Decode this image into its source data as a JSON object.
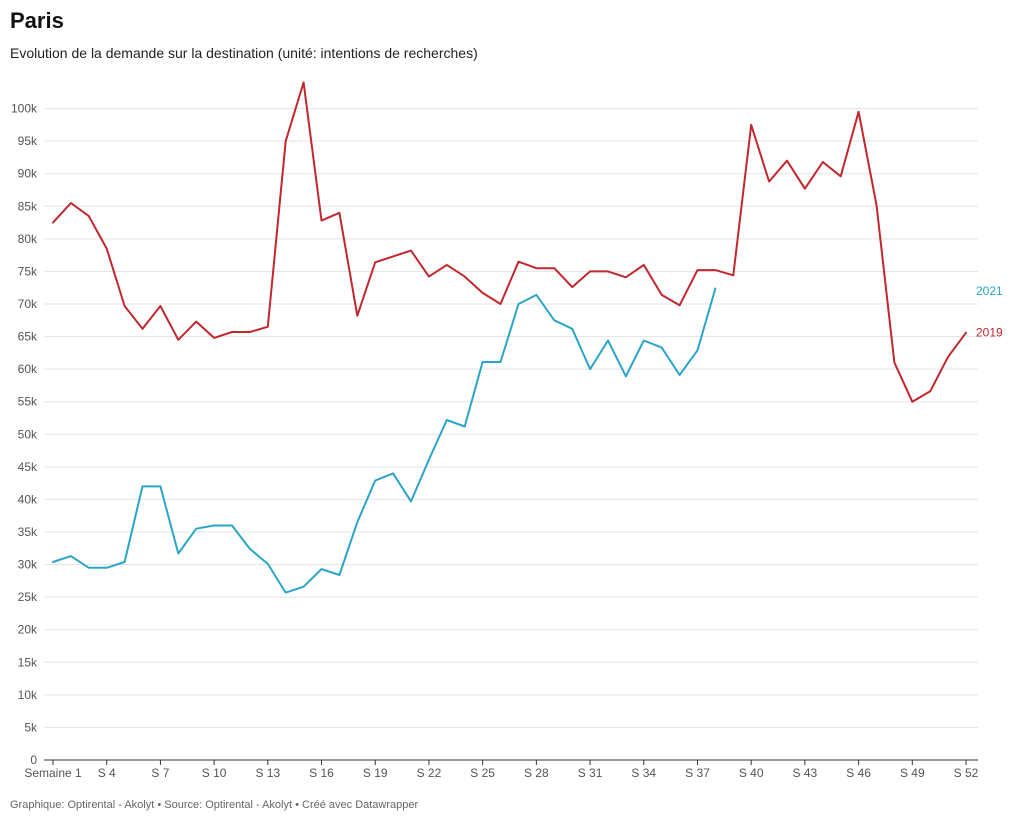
{
  "header": {
    "title": "Paris",
    "subtitle": "Evolution de la demande sur la destination (unité: intentions de recherches)"
  },
  "footer": {
    "text": "Graphique: Optirental - Akolyt • Source: Optirental - Akolyt • Créé avec Datawrapper"
  },
  "chart_data": {
    "type": "line",
    "ylim": [
      0,
      105000
    ],
    "yticks": [
      {
        "value": 0,
        "label": "0"
      },
      {
        "value": 5000,
        "label": "5k"
      },
      {
        "value": 10000,
        "label": "10k"
      },
      {
        "value": 15000,
        "label": "15k"
      },
      {
        "value": 20000,
        "label": "20k"
      },
      {
        "value": 25000,
        "label": "25k"
      },
      {
        "value": 30000,
        "label": "30k"
      },
      {
        "value": 35000,
        "label": "35k"
      },
      {
        "value": 40000,
        "label": "40k"
      },
      {
        "value": 45000,
        "label": "45k"
      },
      {
        "value": 50000,
        "label": "50k"
      },
      {
        "value": 55000,
        "label": "55k"
      },
      {
        "value": 60000,
        "label": "60k"
      },
      {
        "value": 65000,
        "label": "65k"
      },
      {
        "value": 70000,
        "label": "70k"
      },
      {
        "value": 75000,
        "label": "75k"
      },
      {
        "value": 80000,
        "label": "80k"
      },
      {
        "value": 85000,
        "label": "85k"
      },
      {
        "value": 90000,
        "label": "90k"
      },
      {
        "value": 95000,
        "label": "95k"
      },
      {
        "value": 100000,
        "label": "100k"
      }
    ],
    "xticks": [
      {
        "week": 1,
        "label": "Semaine 1"
      },
      {
        "week": 4,
        "label": "S 4"
      },
      {
        "week": 7,
        "label": "S 7"
      },
      {
        "week": 10,
        "label": "S 10"
      },
      {
        "week": 13,
        "label": "S 13"
      },
      {
        "week": 16,
        "label": "S 16"
      },
      {
        "week": 19,
        "label": "S 19"
      },
      {
        "week": 22,
        "label": "S 22"
      },
      {
        "week": 25,
        "label": "S 25"
      },
      {
        "week": 28,
        "label": "S 28"
      },
      {
        "week": 31,
        "label": "S 31"
      },
      {
        "week": 34,
        "label": "S 34"
      },
      {
        "week": 37,
        "label": "S 37"
      },
      {
        "week": 40,
        "label": "S 40"
      },
      {
        "week": 43,
        "label": "S 43"
      },
      {
        "week": 46,
        "label": "S 46"
      },
      {
        "week": 49,
        "label": "S 49"
      },
      {
        "week": 52,
        "label": "S 52"
      }
    ],
    "series": [
      {
        "name": "2019",
        "color": "#c1272d",
        "start_week": 1,
        "values": [
          82500,
          85500,
          83500,
          78500,
          69700,
          66200,
          69700,
          64500,
          67300,
          64800,
          65700,
          65700,
          66500,
          95000,
          104000,
          82800,
          84000,
          68200,
          76400,
          77300,
          78200,
          74200,
          76000,
          74200,
          71700,
          70000,
          76500,
          75500,
          75500,
          72600,
          75000,
          75000,
          74100,
          76000,
          71400,
          69800,
          75200,
          75200,
          74400,
          97500,
          88800,
          92000,
          87700,
          91800,
          89600,
          99500,
          85200,
          61000,
          55000,
          56600,
          61900,
          65600
        ]
      },
      {
        "name": "2021",
        "color": "#2aa5c9",
        "start_week": 1,
        "values": [
          30400,
          31300,
          29500,
          29500,
          30400,
          42000,
          42000,
          31700,
          35500,
          36000,
          36000,
          32400,
          30100,
          25700,
          26600,
          29300,
          28400,
          36500,
          42900,
          44000,
          39700,
          46100,
          52200,
          51200,
          61100,
          61100,
          70000,
          71400,
          67500,
          66200,
          60000,
          64400,
          58900,
          64400,
          63300,
          59100,
          62900,
          72400
        ]
      }
    ]
  }
}
